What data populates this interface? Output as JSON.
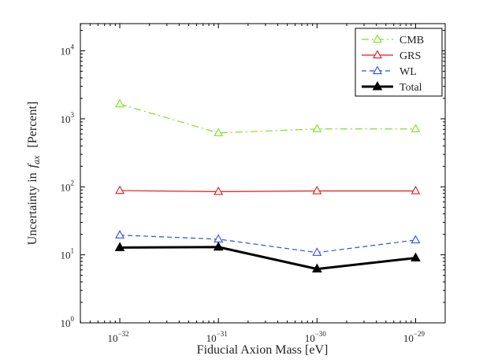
{
  "chart_data": {
    "type": "line",
    "title": "",
    "xlabel": "Fiducial Axion Mass [eV]",
    "ylabel_prefix": "Uncertainty in",
    "ylabel_symbol": "f",
    "ylabel_subscript": "ax",
    "ylabel_suffix": "[Percent]",
    "xscale": "log",
    "yscale": "log",
    "xlim_exp": [
      -32.4,
      -28.7
    ],
    "ylim_exp": [
      0,
      4.4
    ],
    "x_ticks": [
      {
        "value_exp": -32,
        "base": "10",
        "exp": "−32"
      },
      {
        "value_exp": -31,
        "base": "10",
        "exp": "−31"
      },
      {
        "value_exp": -30,
        "base": "10",
        "exp": "−30"
      },
      {
        "value_exp": -29,
        "base": "10",
        "exp": "−29"
      }
    ],
    "y_ticks": [
      {
        "value_exp": 0,
        "base": "10",
        "exp": "0"
      },
      {
        "value_exp": 1,
        "base": "10",
        "exp": "1"
      },
      {
        "value_exp": 2,
        "base": "10",
        "exp": "2"
      },
      {
        "value_exp": 3,
        "base": "10",
        "exp": "3"
      },
      {
        "value_exp": 4,
        "base": "10",
        "exp": "4"
      }
    ],
    "x_exp": [
      -32,
      -31,
      -30,
      -29
    ],
    "series": [
      {
        "name": "CMB",
        "color": "#7fe01e",
        "dash": "9,4,2,4",
        "width": 1.2,
        "marker": "open-triangle",
        "values": [
          1650,
          620,
          710,
          710
        ]
      },
      {
        "name": "GRS",
        "color": "#e01919",
        "dash": "",
        "width": 1.2,
        "marker": "open-triangle",
        "values": [
          88,
          85,
          87,
          87
        ]
      },
      {
        "name": "WL",
        "color": "#2f4fe0",
        "dash": "6,4",
        "width": 1.2,
        "marker": "open-triangle",
        "values": [
          19.5,
          17,
          10.8,
          16.5
        ]
      },
      {
        "name": "Total",
        "color": "#000000",
        "dash": "",
        "width": 3,
        "marker": "filled-triangle",
        "values": [
          12.8,
          13,
          6.2,
          9
        ]
      }
    ],
    "legend_position": "top-right",
    "grid": false
  }
}
